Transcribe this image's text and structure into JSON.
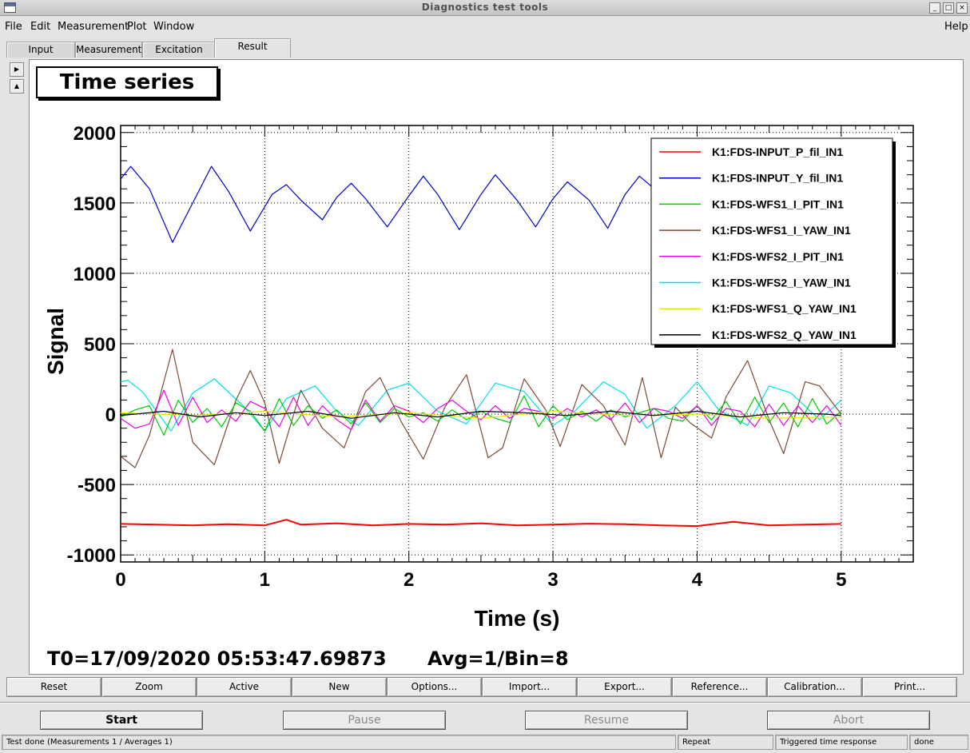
{
  "window": {
    "title": "Diagnostics test tools",
    "controls": {
      "minimize": "_",
      "maximize": "□",
      "close": "×"
    }
  },
  "menu": {
    "file": "File",
    "edit": "Edit",
    "measurement": "Measurement",
    "plot": "Plot",
    "window": "Window",
    "help": "Help"
  },
  "tabs": [
    "Input",
    "Measurement",
    "Excitation",
    "Result"
  ],
  "active_tab": "Result",
  "side_arrows": {
    "right": "▶",
    "up": "▲"
  },
  "plot": {
    "title": "Time series",
    "t0": "T0=17/09/2020 05:53:47.69873",
    "avg": "Avg=1/Bin=8"
  },
  "chart_data": {
    "type": "line",
    "xlabel": "Time (s)",
    "ylabel": "Signal",
    "xlim": [
      0,
      5.5
    ],
    "ylim": [
      -1050,
      2050
    ],
    "xticks": [
      0,
      1,
      2,
      3,
      4,
      5
    ],
    "yticks": [
      -1000,
      -500,
      0,
      500,
      1000,
      1500,
      2000
    ],
    "grid": true,
    "legend_position": "top-right",
    "series": [
      {
        "name": "K1:FDS-INPUT_P_fil_IN1",
        "color": "#ff0000",
        "x": [
          0,
          0.25,
          0.5,
          0.75,
          1.0,
          1.15,
          1.25,
          1.5,
          1.75,
          2.0,
          2.25,
          2.5,
          2.75,
          3.0,
          3.25,
          3.5,
          3.75,
          4.0,
          4.25,
          4.5,
          4.75,
          5.0
        ],
        "y": [
          -780,
          -785,
          -790,
          -782,
          -790,
          -750,
          -785,
          -775,
          -790,
          -780,
          -785,
          -775,
          -790,
          -785,
          -778,
          -782,
          -790,
          -795,
          -765,
          -790,
          -785,
          -780
        ]
      },
      {
        "name": "K1:FDS-INPUT_Y_fil_IN1",
        "color": "#0000cc",
        "x": [
          0,
          0.07,
          0.2,
          0.36,
          0.5,
          0.63,
          0.75,
          0.9,
          1.05,
          1.15,
          1.25,
          1.4,
          1.5,
          1.6,
          1.7,
          1.85,
          2.0,
          2.1,
          2.2,
          2.35,
          2.5,
          2.6,
          2.75,
          2.88,
          3.0,
          3.1,
          3.25,
          3.38,
          3.5,
          3.6,
          3.75,
          3.85
        ],
        "y": [
          1670,
          1760,
          1600,
          1220,
          1500,
          1760,
          1580,
          1300,
          1560,
          1630,
          1520,
          1380,
          1540,
          1640,
          1530,
          1330,
          1550,
          1690,
          1560,
          1310,
          1560,
          1700,
          1520,
          1330,
          1530,
          1650,
          1520,
          1320,
          1560,
          1690,
          1560,
          1420
        ]
      },
      {
        "name": "K1:FDS-WFS1_I_PIT_IN1",
        "color": "#00cc00",
        "x": [
          0,
          0.1,
          0.2,
          0.3,
          0.4,
          0.5,
          0.6,
          0.7,
          0.8,
          0.9,
          1.0,
          1.1,
          1.2,
          1.3,
          1.4,
          1.5,
          1.6,
          1.7,
          1.8,
          1.9,
          2.0,
          2.1,
          2.2,
          2.3,
          2.4,
          2.5,
          2.6,
          2.7,
          2.8,
          2.9,
          3.0,
          3.1,
          3.2,
          3.3,
          3.4,
          3.5,
          3.6,
          3.7,
          3.8,
          3.9,
          4.0,
          4.1,
          4.2,
          4.3,
          4.4,
          4.5,
          4.6,
          4.7,
          4.8,
          4.9,
          5.0
        ],
        "y": [
          -20,
          30,
          60,
          -150,
          100,
          -60,
          40,
          -90,
          80,
          20,
          -120,
          110,
          -80,
          60,
          -30,
          30,
          -70,
          80,
          -60,
          40,
          -20,
          10,
          -50,
          30,
          -40,
          20,
          -30,
          -60,
          130,
          -90,
          60,
          -40,
          20,
          -50,
          30,
          -20,
          10,
          40,
          -30,
          -50,
          60,
          -40,
          90,
          -70,
          120,
          -60,
          80,
          -90,
          110,
          -70,
          20
        ]
      },
      {
        "name": "K1:FDS-WFS1_I_YAW_IN1",
        "color": "#7b4b3a",
        "x": [
          0,
          0.1,
          0.2,
          0.36,
          0.5,
          0.65,
          0.8,
          0.9,
          1.0,
          1.1,
          1.25,
          1.4,
          1.55,
          1.7,
          1.8,
          1.95,
          2.1,
          2.25,
          2.4,
          2.55,
          2.65,
          2.8,
          2.95,
          3.05,
          3.2,
          3.35,
          3.5,
          3.62,
          3.75,
          3.85,
          3.95,
          4.1,
          4.2,
          4.35,
          4.5,
          4.6,
          4.75,
          4.85,
          5.0
        ],
        "y": [
          -300,
          -380,
          -150,
          460,
          -200,
          -360,
          100,
          310,
          80,
          -350,
          170,
          -100,
          -240,
          160,
          260,
          -60,
          -320,
          50,
          280,
          -310,
          -240,
          250,
          30,
          -230,
          210,
          60,
          -220,
          260,
          -310,
          50,
          -60,
          -170,
          120,
          380,
          -40,
          -280,
          230,
          200,
          0
        ]
      },
      {
        "name": "K1:FDS-WFS2_I_PIT_IN1",
        "color": "#ee00ee",
        "x": [
          0,
          0.1,
          0.2,
          0.3,
          0.4,
          0.5,
          0.6,
          0.7,
          0.8,
          0.9,
          1.0,
          1.1,
          1.2,
          1.3,
          1.4,
          1.5,
          1.6,
          1.7,
          1.8,
          1.9,
          2.0,
          2.1,
          2.2,
          2.3,
          2.4,
          2.5,
          2.6,
          2.7,
          2.8,
          2.9,
          3.0,
          3.1,
          3.2,
          3.3,
          3.4,
          3.5,
          3.6,
          3.7,
          3.8,
          3.9,
          4.0,
          4.1,
          4.2,
          4.3,
          4.4,
          4.5,
          4.6,
          4.7,
          4.8,
          4.9,
          5.0
        ],
        "y": [
          -30,
          -100,
          -70,
          170,
          -80,
          120,
          -60,
          30,
          -50,
          90,
          40,
          -90,
          120,
          -80,
          60,
          -40,
          -110,
          100,
          -50,
          60,
          20,
          -60,
          40,
          100,
          20,
          -40,
          60,
          -30,
          40,
          20,
          -30,
          40,
          -20,
          30,
          -40,
          80,
          -60,
          40,
          20,
          -30,
          60,
          -80,
          40,
          20,
          -90,
          70,
          -80,
          60,
          -60,
          60,
          -80
        ]
      },
      {
        "name": "K1:FDS-WFS2_I_YAW_IN1",
        "color": "#00e0e8",
        "x": [
          0,
          0.05,
          0.15,
          0.35,
          0.5,
          0.65,
          0.85,
          1.0,
          1.15,
          1.35,
          1.5,
          1.65,
          1.85,
          2.0,
          2.2,
          2.4,
          2.6,
          2.8,
          3.0,
          3.15,
          3.35,
          3.5,
          3.65,
          3.85,
          4.0,
          4.15,
          4.35,
          4.5,
          4.65,
          4.85,
          5.0
        ],
        "y": [
          230,
          240,
          160,
          -120,
          150,
          250,
          60,
          -120,
          110,
          200,
          20,
          -80,
          170,
          220,
          20,
          -70,
          220,
          160,
          -80,
          20,
          230,
          140,
          -100,
          60,
          230,
          30,
          -80,
          200,
          150,
          -40,
          100
        ]
      },
      {
        "name": "K1:FDS-WFS1_Q_YAW_IN1",
        "color": "#e8e800",
        "x": [
          0,
          0.5,
          1.0,
          1.5,
          2.0,
          2.5,
          3.0,
          3.5,
          4.0,
          4.5,
          5.0
        ],
        "y": [
          10,
          -10,
          20,
          -20,
          10,
          -30,
          20,
          -10,
          0,
          -30,
          -20
        ]
      },
      {
        "name": "K1:FDS-WFS2_Q_YAW_IN1",
        "color": "#000000",
        "x": [
          0,
          0.3,
          0.55,
          0.8,
          1.0,
          1.3,
          1.6,
          1.9,
          2.2,
          2.5,
          2.8,
          3.1,
          3.4,
          3.7,
          4.0,
          4.3,
          4.6,
          4.9,
          5.0
        ],
        "y": [
          -10,
          20,
          -20,
          10,
          -10,
          20,
          -30,
          10,
          -20,
          20,
          10,
          -10,
          20,
          -10,
          20,
          -20,
          10,
          0,
          -10
        ]
      }
    ]
  },
  "toolbar": [
    "Reset",
    "Zoom",
    "Active",
    "New",
    "Options...",
    "Import...",
    "Export...",
    "Reference...",
    "Calibration...",
    "Print..."
  ],
  "controls": {
    "start": "Start",
    "pause": "Pause",
    "resume": "Resume",
    "abort": "Abort"
  },
  "status": {
    "message": "Test done (Measurements 1 / Averages 1)",
    "mode": "Repeat",
    "type": "Triggered time response",
    "state": "done"
  }
}
